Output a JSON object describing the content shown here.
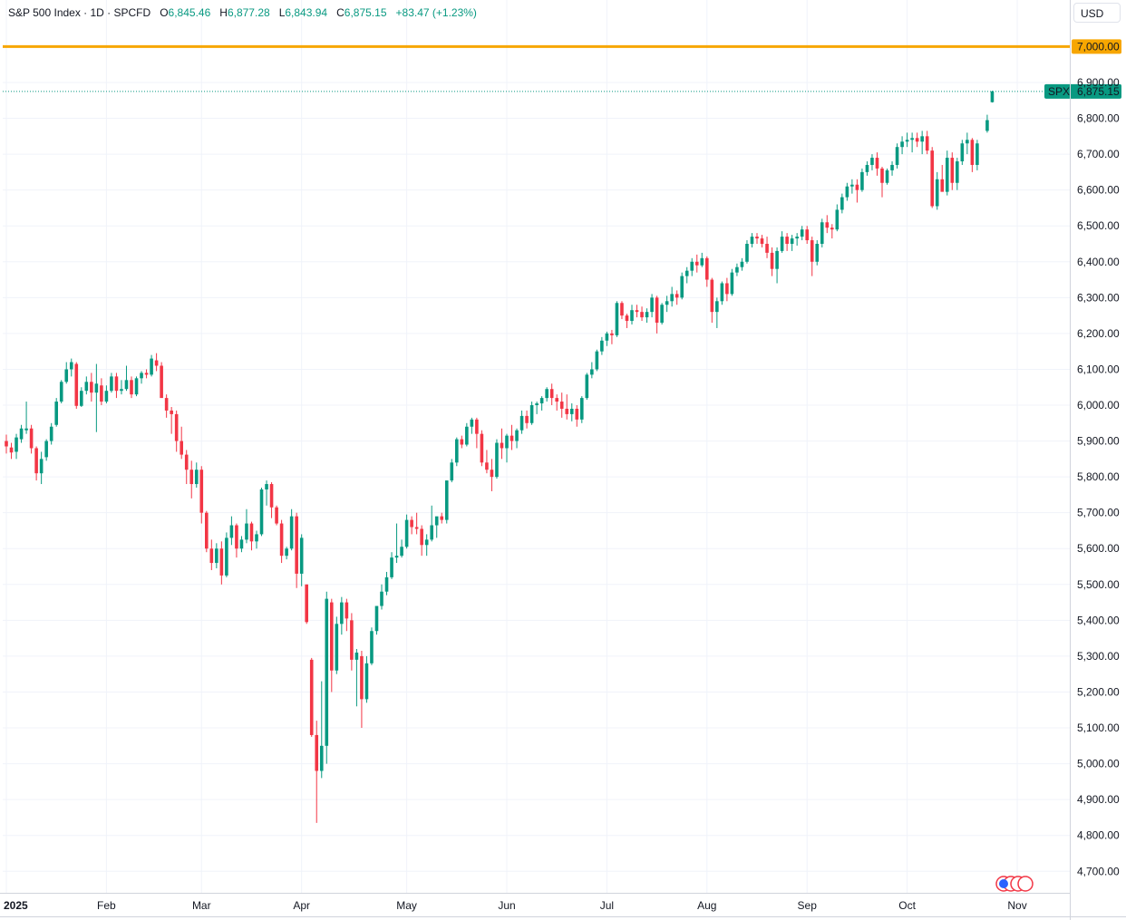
{
  "header": {
    "symbol": "S&P 500 Index · 1D · SPCFD",
    "o_label": "O",
    "o_value": "6,845.46",
    "h_label": "H",
    "h_value": "6,877.28",
    "l_label": "L",
    "l_value": "6,843.94",
    "c_label": "C",
    "c_value": "6,875.15",
    "change": "+83.47 (+1.23%)"
  },
  "currency": "USD",
  "colors": {
    "up": "#089981",
    "down": "#f23645",
    "alert": "#f7a600",
    "grid": "#f0f3fa"
  },
  "chart_data": {
    "type": "candlestick",
    "ylim": [
      4640,
      7130
    ],
    "yticks": [
      {
        "value": 4700,
        "label": "4,700.00"
      },
      {
        "value": 4800,
        "label": "4,800.00"
      },
      {
        "value": 4900,
        "label": "4,900.00"
      },
      {
        "value": 5000,
        "label": "5,000.00"
      },
      {
        "value": 5100,
        "label": "5,100.00"
      },
      {
        "value": 5200,
        "label": "5,200.00"
      },
      {
        "value": 5300,
        "label": "5,300.00"
      },
      {
        "value": 5400,
        "label": "5,400.00"
      },
      {
        "value": 5500,
        "label": "5,500.00"
      },
      {
        "value": 5600,
        "label": "5,600.00"
      },
      {
        "value": 5700,
        "label": "5,700.00"
      },
      {
        "value": 5800,
        "label": "5,800.00"
      },
      {
        "value": 5900,
        "label": "5,900.00"
      },
      {
        "value": 6000,
        "label": "6,000.00"
      },
      {
        "value": 6100,
        "label": "6,100.00"
      },
      {
        "value": 6200,
        "label": "6,200.00"
      },
      {
        "value": 6300,
        "label": "6,300.00"
      },
      {
        "value": 6400,
        "label": "6,400.00"
      },
      {
        "value": 6500,
        "label": "6,500.00"
      },
      {
        "value": 6600,
        "label": "6,600.00"
      },
      {
        "value": 6700,
        "label": "6,700.00"
      },
      {
        "value": 6800,
        "label": "6,800.00"
      },
      {
        "value": 6900,
        "label": "6,900.00"
      }
    ],
    "xticks": [
      {
        "label": "2025",
        "bar": 0
      },
      {
        "label": "Feb",
        "bar": 20
      },
      {
        "label": "Mar",
        "bar": 39
      },
      {
        "label": "Apr",
        "bar": 59
      },
      {
        "label": "May",
        "bar": 80
      },
      {
        "label": "Jun",
        "bar": 100
      },
      {
        "label": "Jul",
        "bar": 120
      },
      {
        "label": "Aug",
        "bar": 140
      },
      {
        "label": "Sep",
        "bar": 160
      },
      {
        "label": "Oct",
        "bar": 180
      },
      {
        "label": "Nov",
        "bar": 202
      }
    ],
    "alert_line": {
      "value": 7000,
      "label": "7,000.00"
    },
    "last_price": {
      "symbol": "SPX",
      "value": 6875.15,
      "label": "6,875.15"
    },
    "candles": [
      [
        5900,
        5918,
        5865,
        5885
      ],
      [
        5882,
        5895,
        5850,
        5868
      ],
      [
        5870,
        5920,
        5850,
        5910
      ],
      [
        5905,
        5945,
        5895,
        5935
      ],
      [
        5930,
        6010,
        5920,
        5935
      ],
      [
        5935,
        5945,
        5865,
        5880
      ],
      [
        5880,
        5885,
        5790,
        5810
      ],
      [
        5810,
        5870,
        5780,
        5850
      ],
      [
        5855,
        5905,
        5845,
        5900
      ],
      [
        5900,
        5950,
        5890,
        5940
      ],
      [
        5945,
        6020,
        5940,
        6010
      ],
      [
        6010,
        6070,
        6005,
        6065
      ],
      [
        6065,
        6120,
        6060,
        6100
      ],
      [
        6100,
        6130,
        6080,
        6120
      ],
      [
        6115,
        6120,
        5990,
        5998
      ],
      [
        5998,
        6050,
        5995,
        6040
      ],
      [
        6040,
        6080,
        6030,
        6065
      ],
      [
        6065,
        6090,
        6010,
        6035
      ],
      [
        6035,
        6115,
        5925,
        6060
      ],
      [
        6055,
        6075,
        6000,
        6010
      ],
      [
        6010,
        6055,
        6005,
        6040
      ],
      [
        6040,
        6090,
        6035,
        6080
      ],
      [
        6080,
        6090,
        6020,
        6040
      ],
      [
        6040,
        6070,
        6030,
        6045
      ],
      [
        6045,
        6110,
        6040,
        6070
      ],
      [
        6070,
        6080,
        6020,
        6030
      ],
      [
        6030,
        6080,
        6025,
        6075
      ],
      [
        6075,
        6095,
        6060,
        6090
      ],
      [
        6090,
        6100,
        6075,
        6085
      ],
      [
        6085,
        6140,
        6080,
        6130
      ],
      [
        6125,
        6145,
        6095,
        6110
      ],
      [
        6110,
        6120,
        6040,
        6020
      ],
      [
        6020,
        6030,
        5965,
        5985
      ],
      [
        5985,
        5995,
        5920,
        5975
      ],
      [
        5975,
        5985,
        5870,
        5900
      ],
      [
        5900,
        5940,
        5850,
        5862
      ],
      [
        5862,
        5875,
        5780,
        5820
      ],
      [
        5820,
        5845,
        5740,
        5780
      ],
      [
        5780,
        5840,
        5770,
        5820
      ],
      [
        5820,
        5830,
        5670,
        5700
      ],
      [
        5700,
        5705,
        5590,
        5600
      ],
      [
        5600,
        5625,
        5540,
        5560
      ],
      [
        5560,
        5615,
        5545,
        5600
      ],
      [
        5600,
        5620,
        5500,
        5525
      ],
      [
        5525,
        5645,
        5520,
        5630
      ],
      [
        5630,
        5690,
        5610,
        5665
      ],
      [
        5665,
        5670,
        5575,
        5600
      ],
      [
        5600,
        5635,
        5590,
        5625
      ],
      [
        5625,
        5710,
        5615,
        5670
      ],
      [
        5670,
        5675,
        5595,
        5620
      ],
      [
        5620,
        5650,
        5600,
        5640
      ],
      [
        5640,
        5770,
        5635,
        5765
      ],
      [
        5765,
        5790,
        5720,
        5780
      ],
      [
        5780,
        5785,
        5685,
        5715
      ],
      [
        5715,
        5720,
        5665,
        5670
      ],
      [
        5670,
        5680,
        5560,
        5580
      ],
      [
        5580,
        5605,
        5570,
        5600
      ],
      [
        5600,
        5710,
        5595,
        5690
      ],
      [
        5690,
        5700,
        5490,
        5530
      ],
      [
        5530,
        5640,
        5495,
        5630
      ],
      [
        5500,
        5500,
        5390,
        5395
      ],
      [
        5290,
        5295,
        5075,
        5080
      ],
      [
        5080,
        5120,
        4835,
        4980
      ],
      [
        4980,
        5230,
        4960,
        5050
      ],
      [
        5050,
        5480,
        5000,
        5460
      ],
      [
        5450,
        5460,
        5200,
        5260
      ],
      [
        5260,
        5410,
        5250,
        5390
      ],
      [
        5390,
        5465,
        5360,
        5450
      ],
      [
        5450,
        5460,
        5370,
        5405
      ],
      [
        5400,
        5420,
        5260,
        5290
      ],
      [
        5290,
        5320,
        5160,
        5310
      ],
      [
        5300,
        5315,
        5100,
        5180
      ],
      [
        5180,
        5300,
        5170,
        5280
      ],
      [
        5280,
        5380,
        5275,
        5370
      ],
      [
        5370,
        5435,
        5360,
        5440
      ],
      [
        5440,
        5500,
        5430,
        5480
      ],
      [
        5480,
        5535,
        5470,
        5520
      ],
      [
        5520,
        5590,
        5515,
        5575
      ],
      [
        5575,
        5670,
        5560,
        5580
      ],
      [
        5580,
        5625,
        5575,
        5605
      ],
      [
        5605,
        5695,
        5600,
        5680
      ],
      [
        5680,
        5690,
        5640,
        5660
      ],
      [
        5660,
        5700,
        5640,
        5655
      ],
      [
        5655,
        5665,
        5580,
        5610
      ],
      [
        5610,
        5640,
        5580,
        5625
      ],
      [
        5625,
        5720,
        5620,
        5665
      ],
      [
        5665,
        5680,
        5630,
        5690
      ],
      [
        5690,
        5700,
        5670,
        5680
      ],
      [
        5680,
        5790,
        5670,
        5790
      ],
      [
        5790,
        5850,
        5785,
        5840
      ],
      [
        5840,
        5910,
        5830,
        5905
      ],
      [
        5905,
        5915,
        5880,
        5890
      ],
      [
        5890,
        5950,
        5885,
        5940
      ],
      [
        5940,
        5965,
        5920,
        5960
      ],
      [
        5960,
        5965,
        5880,
        5920
      ],
      [
        5920,
        5930,
        5830,
        5840
      ],
      [
        5840,
        5875,
        5810,
        5820
      ],
      [
        5820,
        5850,
        5760,
        5800
      ],
      [
        5800,
        5905,
        5795,
        5895
      ],
      [
        5895,
        5935,
        5850,
        5880
      ],
      [
        5880,
        5920,
        5840,
        5915
      ],
      [
        5915,
        5945,
        5875,
        5900
      ],
      [
        5900,
        5935,
        5880,
        5930
      ],
      [
        5930,
        5985,
        5920,
        5970
      ],
      [
        5970,
        5985,
        5935,
        5950
      ],
      [
        5950,
        6010,
        5945,
        6000
      ],
      [
        6000,
        6010,
        5975,
        6005
      ],
      [
        6005,
        6025,
        5985,
        6020
      ],
      [
        6020,
        6050,
        6010,
        6045
      ],
      [
        6045,
        6060,
        6000,
        6020
      ],
      [
        6020,
        6030,
        5985,
        6010
      ],
      [
        6010,
        6035,
        5965,
        5990
      ],
      [
        5990,
        6030,
        5960,
        5975
      ],
      [
        5975,
        6005,
        5955,
        5990
      ],
      [
        5990,
        6000,
        5940,
        5960
      ],
      [
        5960,
        6025,
        5950,
        6020
      ],
      [
        6020,
        6090,
        6015,
        6085
      ],
      [
        6085,
        6120,
        6075,
        6100
      ],
      [
        6100,
        6155,
        6095,
        6150
      ],
      [
        6150,
        6190,
        6140,
        6180
      ],
      [
        6180,
        6205,
        6165,
        6200
      ],
      [
        6200,
        6210,
        6170,
        6195
      ],
      [
        6195,
        6290,
        6190,
        6285
      ],
      [
        6285,
        6290,
        6240,
        6250
      ],
      [
        6250,
        6255,
        6215,
        6235
      ],
      [
        6235,
        6280,
        6225,
        6265
      ],
      [
        6265,
        6280,
        6245,
        6260
      ],
      [
        6260,
        6275,
        6235,
        6245
      ],
      [
        6245,
        6270,
        6230,
        6260
      ],
      [
        6260,
        6310,
        6245,
        6300
      ],
      [
        6300,
        6305,
        6200,
        6230
      ],
      [
        6230,
        6285,
        6225,
        6280
      ],
      [
        6280,
        6305,
        6260,
        6290
      ],
      [
        6290,
        6330,
        6275,
        6310
      ],
      [
        6310,
        6320,
        6280,
        6300
      ],
      [
        6300,
        6370,
        6295,
        6360
      ],
      [
        6360,
        6385,
        6340,
        6375
      ],
      [
        6375,
        6410,
        6360,
        6400
      ],
      [
        6400,
        6420,
        6370,
        6390
      ],
      [
        6390,
        6425,
        6385,
        6410
      ],
      [
        6410,
        6415,
        6330,
        6350
      ],
      [
        6350,
        6355,
        6230,
        6260
      ],
      [
        6260,
        6300,
        6215,
        6290
      ],
      [
        6290,
        6345,
        6280,
        6340
      ],
      [
        6340,
        6355,
        6290,
        6310
      ],
      [
        6310,
        6380,
        6305,
        6370
      ],
      [
        6370,
        6395,
        6360,
        6385
      ],
      [
        6385,
        6410,
        6375,
        6400
      ],
      [
        6400,
        6460,
        6395,
        6450
      ],
      [
        6450,
        6480,
        6440,
        6470
      ],
      [
        6470,
        6480,
        6450,
        6465
      ],
      [
        6465,
        6475,
        6440,
        6450
      ],
      [
        6450,
        6470,
        6410,
        6425
      ],
      [
        6425,
        6440,
        6360,
        6380
      ],
      [
        6380,
        6440,
        6340,
        6430
      ],
      [
        6430,
        6485,
        6425,
        6470
      ],
      [
        6470,
        6480,
        6430,
        6450
      ],
      [
        6450,
        6475,
        6430,
        6465
      ],
      [
        6465,
        6480,
        6445,
        6470
      ],
      [
        6470,
        6500,
        6460,
        6490
      ],
      [
        6490,
        6500,
        6450,
        6460
      ],
      [
        6460,
        6470,
        6360,
        6400
      ],
      [
        6400,
        6460,
        6390,
        6450
      ],
      [
        6450,
        6520,
        6440,
        6510
      ],
      [
        6510,
        6530,
        6480,
        6495
      ],
      [
        6495,
        6505,
        6465,
        6490
      ],
      [
        6490,
        6560,
        6485,
        6545
      ],
      [
        6545,
        6590,
        6535,
        6580
      ],
      [
        6580,
        6620,
        6570,
        6610
      ],
      [
        6610,
        6630,
        6590,
        6615
      ],
      [
        6615,
        6630,
        6565,
        6600
      ],
      [
        6600,
        6660,
        6595,
        6650
      ],
      [
        6650,
        6680,
        6640,
        6670
      ],
      [
        6670,
        6700,
        6655,
        6690
      ],
      [
        6690,
        6705,
        6640,
        6660
      ],
      [
        6660,
        6665,
        6580,
        6620
      ],
      [
        6620,
        6660,
        6615,
        6655
      ],
      [
        6655,
        6680,
        6640,
        6670
      ],
      [
        6670,
        6730,
        6660,
        6720
      ],
      [
        6720,
        6750,
        6700,
        6735
      ],
      [
        6735,
        6760,
        6720,
        6740
      ],
      [
        6740,
        6760,
        6705,
        6745
      ],
      [
        6745,
        6760,
        6720,
        6735
      ],
      [
        6735,
        6765,
        6700,
        6750
      ],
      [
        6750,
        6765,
        6700,
        6710
      ],
      [
        6710,
        6720,
        6550,
        6555
      ],
      [
        6555,
        6650,
        6545,
        6630
      ],
      [
        6630,
        6670,
        6600,
        6595
      ],
      [
        6595,
        6710,
        6585,
        6690
      ],
      [
        6690,
        6705,
        6600,
        6620
      ],
      [
        6620,
        6690,
        6600,
        6680
      ],
      [
        6680,
        6740,
        6670,
        6730
      ],
      [
        6730,
        6760,
        6700,
        6740
      ],
      [
        6740,
        6745,
        6650,
        6670
      ],
      [
        6670,
        6740,
        6655,
        6730
      ],
      null,
      [
        6765,
        6810,
        6760,
        6795
      ],
      [
        6845,
        6877,
        6844,
        6875
      ]
    ]
  }
}
